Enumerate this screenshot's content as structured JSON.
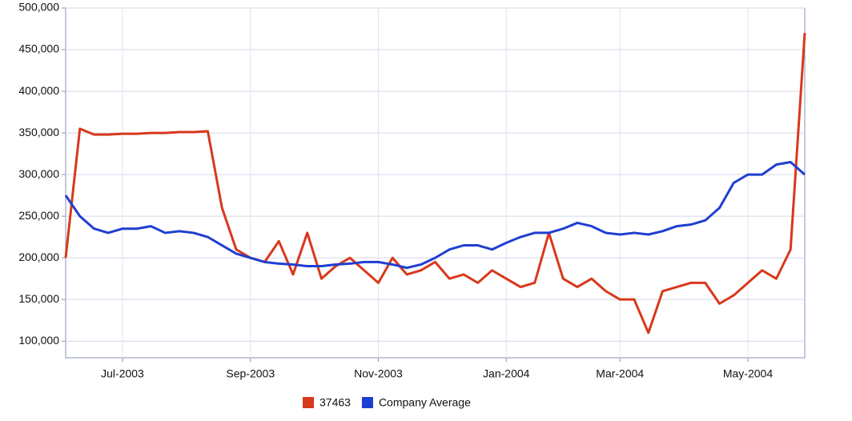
{
  "chart_data": {
    "type": "line",
    "categories": [
      null,
      null,
      null,
      null,
      "Jul-2003",
      null,
      null,
      null,
      null,
      null,
      null,
      null,
      null,
      "Sep-2003",
      null,
      null,
      null,
      null,
      null,
      null,
      null,
      null,
      "Nov-2003",
      null,
      null,
      null,
      null,
      null,
      null,
      null,
      null,
      "Jan-2004",
      null,
      null,
      null,
      null,
      null,
      null,
      null,
      "Mar-2004",
      null,
      null,
      null,
      null,
      null,
      null,
      null,
      null,
      "May-2004",
      null,
      null,
      null,
      null
    ],
    "series": [
      {
        "name": "37463",
        "color": "#d8381c",
        "values": [
          200000,
          355000,
          348000,
          348000,
          349000,
          349000,
          350000,
          350000,
          351000,
          351000,
          352000,
          260000,
          210000,
          200000,
          195000,
          220000,
          180000,
          230000,
          175000,
          190000,
          200000,
          185000,
          170000,
          200000,
          180000,
          185000,
          195000,
          175000,
          180000,
          170000,
          185000,
          175000,
          165000,
          170000,
          230000,
          175000,
          165000,
          175000,
          160000,
          150000,
          150000,
          110000,
          160000,
          165000,
          170000,
          170000,
          145000,
          155000,
          170000,
          185000,
          175000,
          210000,
          470000
        ]
      },
      {
        "name": "Company Average",
        "color": "#1f3fd0",
        "values": [
          275000,
          250000,
          235000,
          230000,
          235000,
          235000,
          238000,
          230000,
          232000,
          230000,
          225000,
          215000,
          205000,
          200000,
          195000,
          193000,
          192000,
          190000,
          190000,
          192000,
          193000,
          195000,
          195000,
          192000,
          188000,
          192000,
          200000,
          210000,
          215000,
          215000,
          210000,
          218000,
          225000,
          230000,
          230000,
          235000,
          242000,
          238000,
          230000,
          228000,
          230000,
          228000,
          232000,
          238000,
          240000,
          245000,
          260000,
          290000,
          300000,
          300000,
          312000,
          315000,
          300000
        ]
      }
    ],
    "ylim": [
      80000,
      500000
    ],
    "yticks": [
      {
        "value": 100000,
        "label": "100,000"
      },
      {
        "value": 150000,
        "label": "150,000"
      },
      {
        "value": 200000,
        "label": "200,000"
      },
      {
        "value": 250000,
        "label": "250,000"
      },
      {
        "value": 300000,
        "label": "300,000"
      },
      {
        "value": 350000,
        "label": "350,000"
      },
      {
        "value": 400000,
        "label": "400,000"
      },
      {
        "value": 450000,
        "label": "450,000"
      },
      {
        "value": 500000,
        "label": "500,000"
      }
    ],
    "grid": true
  }
}
